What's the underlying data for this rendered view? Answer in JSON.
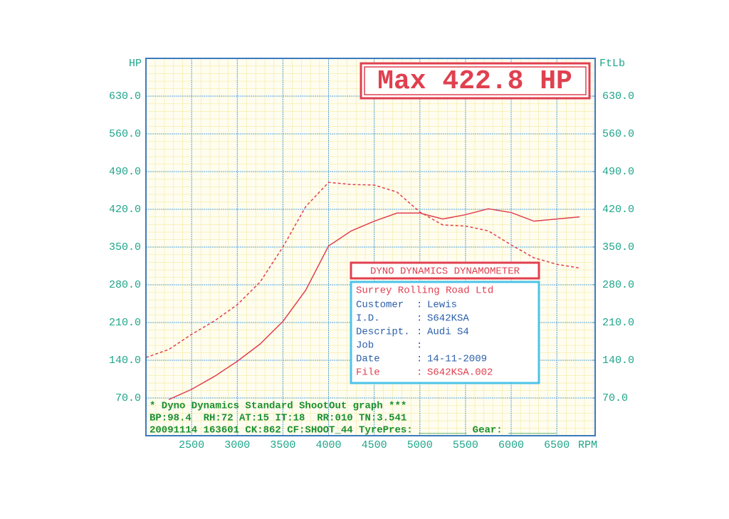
{
  "chart_data": {
    "type": "line",
    "title": "Max 422.8 HP",
    "y_axis_label": "HP",
    "y2_axis_label": "FtLb",
    "x_axis_label": "RPM",
    "x": [
      2000,
      2250,
      2500,
      2750,
      3000,
      3250,
      3500,
      3750,
      4000,
      4250,
      4500,
      4750,
      5000,
      5250,
      5500,
      5750,
      6000,
      6250,
      6500,
      6750
    ],
    "series": [
      {
        "name": "HP",
        "color": "#e0404f",
        "style": "solid",
        "values": [
          null,
          67,
          86,
          110,
          138,
          170,
          212,
          270,
          352,
          380,
          398,
          413,
          413,
          402,
          410,
          421,
          414,
          398,
          402,
          406
        ]
      },
      {
        "name": "FtLb",
        "color": "#e0404f",
        "style": "dashed",
        "axis": "y2",
        "values": [
          145,
          160,
          188,
          213,
          243,
          285,
          350,
          425,
          470,
          466,
          465,
          452,
          415,
          391,
          389,
          380,
          354,
          330,
          318,
          311
        ]
      }
    ],
    "xlim": [
      2000,
      6920
    ],
    "xticks": [
      2500,
      3000,
      3500,
      4000,
      4500,
      5000,
      5500,
      6000,
      6500
    ],
    "ylim": [
      0,
      700
    ],
    "yticks": [
      {
        "value": 70,
        "label": "70.0"
      },
      {
        "value": 140,
        "label": "140.0"
      },
      {
        "value": 210,
        "label": "210.0"
      },
      {
        "value": 280,
        "label": "280.0"
      },
      {
        "value": 350,
        "label": "350.0"
      },
      {
        "value": 420,
        "label": "420.0"
      },
      {
        "value": 490,
        "label": "490.0"
      },
      {
        "value": 560,
        "label": "560.0"
      },
      {
        "value": 630,
        "label": "630.0"
      }
    ],
    "y2lim": [
      0,
      700
    ],
    "y2ticks": [
      {
        "value": 70,
        "label": "70.0"
      },
      {
        "value": 140,
        "label": "140.0"
      },
      {
        "value": 210,
        "label": "210.0"
      },
      {
        "value": 280,
        "label": "280.0"
      },
      {
        "value": 350,
        "label": "350.0"
      },
      {
        "value": 420,
        "label": "420.0"
      },
      {
        "value": 490,
        "label": "490.0"
      },
      {
        "value": 560,
        "label": "560.0"
      },
      {
        "value": 630,
        "label": "630.0"
      }
    ],
    "grid": true,
    "info_box": {
      "title": "DYNO DYNAMICS DYNAMOMETER",
      "company": "Surrey Rolling Road Ltd",
      "rows": [
        {
          "label": "Customer",
          "value": "Lewis"
        },
        {
          "label": "I.D.",
          "value": "S642KSA"
        },
        {
          "label": "Descript.",
          "value": "Audi S4"
        },
        {
          "label": "Job"
        },
        {
          "label": "Date",
          "value": "14-11-2009"
        },
        {
          "label": "File",
          "value": "S642KSA.002"
        }
      ]
    },
    "footer": [
      "* Dyno Dynamics Standard ShootOut graph ***",
      "BP:98.4  RH:72 AT:15 IT:18  RR:010 TN:3.541",
      "20091114 163601 CK:862 CF:SHOOT_44 TyrePres: ________ Gear: ________"
    ]
  }
}
